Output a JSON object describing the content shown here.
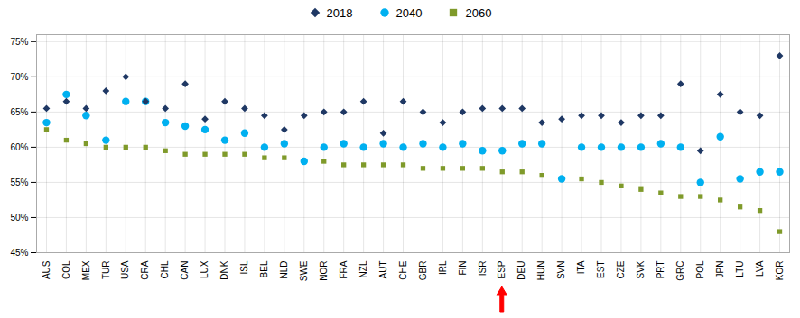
{
  "chart_data": {
    "type": "scatter",
    "categories": [
      "AUS",
      "COL",
      "MEX",
      "TUR",
      "USA",
      "CRA",
      "CHL",
      "CAN",
      "LUX",
      "DNK",
      "ISL",
      "BEL",
      "NLD",
      "SWE",
      "NOR",
      "FRA",
      "NZL",
      "AUT",
      "CHE",
      "GBR",
      "IRL",
      "FIN",
      "ISR",
      "ESP",
      "DEU",
      "HUN",
      "SVN",
      "ITA",
      "EST",
      "CZE",
      "SVK",
      "PRT",
      "GRC",
      "POL",
      "JPN",
      "LTU",
      "LVA",
      "KOR"
    ],
    "series": [
      {
        "name": "2018",
        "color": "#1f3864",
        "marker": "diamond",
        "values": [
          65.5,
          66.5,
          65.5,
          68.0,
          70.0,
          66.5,
          65.5,
          69.0,
          64.0,
          66.5,
          65.5,
          64.5,
          62.5,
          64.5,
          65.0,
          65.0,
          66.5,
          62.0,
          66.5,
          65.0,
          63.5,
          65.0,
          65.5,
          65.5,
          65.5,
          63.5,
          64.0,
          64.5,
          64.5,
          63.5,
          64.5,
          64.5,
          69.0,
          59.5,
          67.5,
          65.0,
          64.5,
          73.0
        ]
      },
      {
        "name": "2040",
        "color": "#00b0f0",
        "marker": "circle",
        "values": [
          63.5,
          67.5,
          64.5,
          61.0,
          66.5,
          66.5,
          63.5,
          63.0,
          62.5,
          61.0,
          62.0,
          60.0,
          60.5,
          58.0,
          60.0,
          60.5,
          60.0,
          60.5,
          60.0,
          60.5,
          60.0,
          60.5,
          59.5,
          59.5,
          60.5,
          60.5,
          55.5,
          60.0,
          60.0,
          60.0,
          60.0,
          60.5,
          60.0,
          55.0,
          61.5,
          55.5,
          56.5,
          56.5
        ]
      },
      {
        "name": "2060",
        "color": "#7f9a2a",
        "marker": "square",
        "values": [
          62.5,
          61.0,
          60.5,
          60.0,
          60.0,
          60.0,
          59.5,
          59.0,
          59.0,
          59.0,
          59.0,
          58.5,
          58.5,
          58.0,
          58.0,
          57.5,
          57.5,
          57.5,
          57.5,
          57.0,
          57.0,
          57.0,
          57.0,
          56.5,
          56.5,
          56.0,
          55.5,
          55.5,
          55.0,
          54.5,
          54.0,
          53.5,
          53.0,
          53.0,
          52.5,
          51.5,
          51.0,
          48.0
        ]
      }
    ],
    "ylim": [
      45,
      76
    ],
    "yticks": [
      {
        "value": 45,
        "label": "45%"
      },
      {
        "value": 50,
        "label": "50%"
      },
      {
        "value": 55,
        "label": "55%"
      },
      {
        "value": 60,
        "label": "60%"
      },
      {
        "value": 65,
        "label": "65%"
      },
      {
        "value": 70,
        "label": "70%"
      },
      {
        "value": 75,
        "label": "75%"
      }
    ],
    "grid": true,
    "annotations": [
      {
        "category": "ESP",
        "marker": "arrow",
        "color": "red"
      }
    ]
  }
}
